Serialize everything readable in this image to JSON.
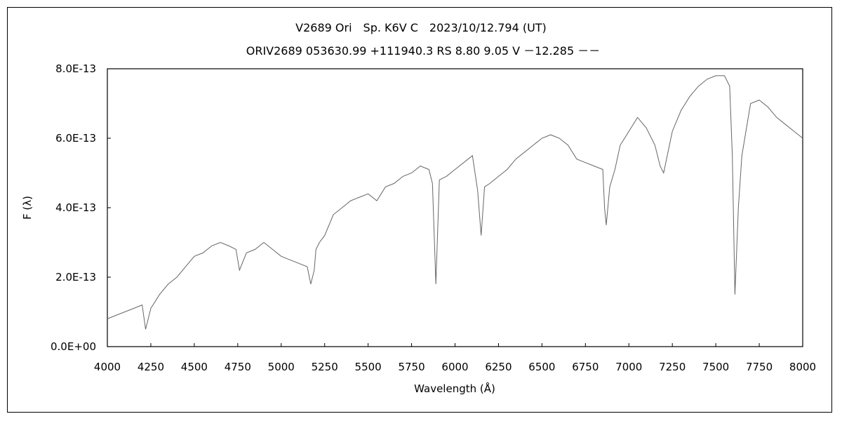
{
  "chart_data": {
    "type": "line",
    "title": "V2689 Ori　Sp. K6V  C　2023/10/12.794 (UT)",
    "subtitle": "ORIV2689 053630.99 +111940.3 RS 8.80 9.05 V －12.285 －－",
    "xlabel": "Wavelength (Å)",
    "ylabel": "F (λ)",
    "xlim": [
      4000,
      8000
    ],
    "ylim": [
      0,
      8e-13
    ],
    "x_ticks": [
      "4000",
      "4250",
      "4500",
      "4750",
      "5000",
      "5250",
      "5500",
      "5750",
      "6000",
      "6250",
      "6500",
      "6750",
      "7000",
      "7250",
      "7500",
      "7750",
      "8000"
    ],
    "y_ticks": [
      "0.0E+00",
      "2.0E-13",
      "4.0E-13",
      "6.0E-13",
      "8.0E-13"
    ],
    "grid": false,
    "series_color": "#666666",
    "series": [
      {
        "x": [
          4000,
          4050,
          4100,
          4150,
          4200,
          4220,
          4250,
          4300,
          4350,
          4400,
          4450,
          4500,
          4550,
          4600,
          4650,
          4700,
          4740,
          4760,
          4800,
          4850,
          4900,
          4950,
          5000,
          5050,
          5100,
          5150,
          5170,
          5190,
          5200,
          5220,
          5250,
          5300,
          5350,
          5400,
          5450,
          5500,
          5550,
          5600,
          5650,
          5700,
          5750,
          5800,
          5850,
          5870,
          5890,
          5910,
          5950,
          6000,
          6050,
          6100,
          6130,
          6150,
          6170,
          6200,
          6250,
          6300,
          6350,
          6400,
          6450,
          6500,
          6550,
          6600,
          6650,
          6700,
          6750,
          6800,
          6850,
          6860,
          6870,
          6890,
          6920,
          6950,
          7000,
          7050,
          7100,
          7150,
          7180,
          7200,
          7250,
          7300,
          7350,
          7400,
          7450,
          7500,
          7550,
          7580,
          7595,
          7610,
          7630,
          7650,
          7700,
          7750,
          7800,
          7850,
          7900,
          7950,
          8000
        ],
        "y": [
          8e-14,
          9e-14,
          1e-13,
          1.1e-13,
          1.2e-13,
          5e-14,
          1.1e-13,
          1.5e-13,
          1.8e-13,
          2e-13,
          2.3e-13,
          2.6e-13,
          2.7e-13,
          2.9e-13,
          3e-13,
          2.9e-13,
          2.8e-13,
          2.2e-13,
          2.7e-13,
          2.8e-13,
          3e-13,
          2.8e-13,
          2.6e-13,
          2.5e-13,
          2.4e-13,
          2.3e-13,
          1.8e-13,
          2.2e-13,
          2.8e-13,
          3e-13,
          3.2e-13,
          3.8e-13,
          4e-13,
          4.2e-13,
          4.3e-13,
          4.4e-13,
          4.2e-13,
          4.6e-13,
          4.7e-13,
          4.9e-13,
          5e-13,
          5.2e-13,
          5.1e-13,
          4.7e-13,
          1.8e-13,
          4.8e-13,
          4.9e-13,
          5.1e-13,
          5.3e-13,
          5.5e-13,
          4.5e-13,
          3.2e-13,
          4.6e-13,
          4.7e-13,
          4.9e-13,
          5.1e-13,
          5.4e-13,
          5.6e-13,
          5.8e-13,
          6e-13,
          6.1e-13,
          6e-13,
          5.8e-13,
          5.4e-13,
          5.3e-13,
          5.2e-13,
          5.1e-13,
          4e-13,
          3.5e-13,
          4.6e-13,
          5.1e-13,
          5.8e-13,
          6.2e-13,
          6.6e-13,
          6.3e-13,
          5.8e-13,
          5.2e-13,
          5e-13,
          6.2e-13,
          6.8e-13,
          7.2e-13,
          7.5e-13,
          7.7e-13,
          7.8e-13,
          7.8e-13,
          7.5e-13,
          5.5e-13,
          1.5e-13,
          4e-13,
          5.5e-13,
          7e-13,
          7.1e-13,
          6.9e-13,
          6.6e-13,
          6.4e-13,
          6.2e-13,
          6e-13
        ]
      }
    ]
  }
}
